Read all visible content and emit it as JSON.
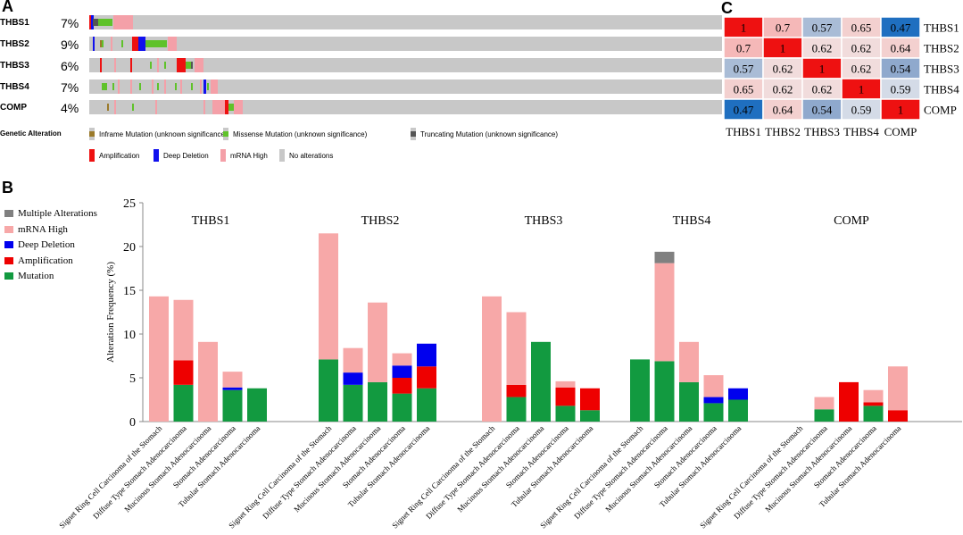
{
  "panels": {
    "a": "A",
    "b": "B",
    "c": "C"
  },
  "oncoprint": {
    "genes": [
      {
        "name": "THBS1",
        "pct": "7%"
      },
      {
        "name": "THBS2",
        "pct": "9%"
      },
      {
        "name": "THBS3",
        "pct": "6%"
      },
      {
        "name": "THBS4",
        "pct": "7%"
      },
      {
        "name": "COMP",
        "pct": "4%"
      }
    ],
    "legend_title": "Genetic Alteration",
    "legend": [
      {
        "label": "Inframe Mutation (unknown significance)",
        "color": "#9b7a2a",
        "shape": "half"
      },
      {
        "label": "Missense Mutation (unknown significance)",
        "color": "#5fc22a",
        "shape": "half"
      },
      {
        "label": "Truncating Mutation (unknown significance)",
        "color": "#555555",
        "shape": "half"
      },
      {
        "label": "Amplification",
        "color": "#ee1111",
        "shape": "full"
      },
      {
        "label": "Deep Deletion",
        "color": "#1111ee",
        "shape": "full"
      },
      {
        "label": "mRNA High",
        "color": "#f4a0a8",
        "shape": "full"
      },
      {
        "label": "No alterations",
        "color": "#c8c8c8",
        "shape": "full"
      }
    ]
  },
  "correlation": {
    "labels": [
      "THBS1",
      "THBS2",
      "THBS3",
      "THBS4",
      "COMP"
    ],
    "values": [
      [
        1,
        0.7,
        0.57,
        0.65,
        0.47
      ],
      [
        0.7,
        1,
        0.62,
        0.62,
        0.64
      ],
      [
        0.57,
        0.62,
        1,
        0.62,
        0.54
      ],
      [
        0.65,
        0.62,
        0.62,
        1,
        0.59
      ],
      [
        0.47,
        0.64,
        0.54,
        0.59,
        1
      ]
    ]
  },
  "chart_data": {
    "type": "bar",
    "stacked": true,
    "ylabel": "Alteration Frequency (%)",
    "ylim": [
      0,
      25
    ],
    "yticks": [
      0,
      5,
      10,
      15,
      20,
      25
    ],
    "legend": [
      {
        "name": "Multiple Alterations",
        "color": "#808080"
      },
      {
        "name": "mRNA High",
        "color": "#f7a8a8"
      },
      {
        "name": "Deep Deletion",
        "color": "#0000ee"
      },
      {
        "name": "Amplification",
        "color": "#ee0000"
      },
      {
        "name": "Mutation",
        "color": "#129a40"
      }
    ],
    "stack_order": [
      "Mutation",
      "Amplification",
      "Deep Deletion",
      "mRNA High",
      "Multiple Alterations"
    ],
    "categories": [
      "Signet Ring Cell Carcinoma of the Stomach",
      "Diffuse Type Stomach Adenocarcinoma",
      "Mucinous Stomach Adenocarcinoma",
      "Stomach Adenocarcinoma",
      "Tubular Stomach Adenocarcinoma"
    ],
    "groups": [
      {
        "gene": "THBS1",
        "bars": [
          {
            "Mutation": 0,
            "Amplification": 0,
            "Deep Deletion": 0,
            "mRNA High": 14.3,
            "Multiple Alterations": 0
          },
          {
            "Mutation": 4.2,
            "Amplification": 2.8,
            "Deep Deletion": 0,
            "mRNA High": 6.9,
            "Multiple Alterations": 0
          },
          {
            "Mutation": 0,
            "Amplification": 0,
            "Deep Deletion": 0,
            "mRNA High": 9.1,
            "Multiple Alterations": 0
          },
          {
            "Mutation": 3.6,
            "Amplification": 0,
            "Deep Deletion": 0.3,
            "mRNA High": 1.8,
            "Multiple Alterations": 0
          },
          {
            "Mutation": 3.8,
            "Amplification": 0,
            "Deep Deletion": 0,
            "mRNA High": 0,
            "Multiple Alterations": 0
          }
        ]
      },
      {
        "gene": "THBS2",
        "bars": [
          {
            "Mutation": 7.1,
            "Amplification": 0,
            "Deep Deletion": 0,
            "mRNA High": 14.4,
            "Multiple Alterations": 0
          },
          {
            "Mutation": 4.2,
            "Amplification": 0,
            "Deep Deletion": 1.4,
            "mRNA High": 2.8,
            "Multiple Alterations": 0
          },
          {
            "Mutation": 4.5,
            "Amplification": 0,
            "Deep Deletion": 0,
            "mRNA High": 9.1,
            "Multiple Alterations": 0
          },
          {
            "Mutation": 3.2,
            "Amplification": 1.8,
            "Deep Deletion": 1.4,
            "mRNA High": 1.4,
            "Multiple Alterations": 0
          },
          {
            "Mutation": 3.8,
            "Amplification": 2.5,
            "Deep Deletion": 2.6,
            "mRNA High": 0,
            "Multiple Alterations": 0
          }
        ]
      },
      {
        "gene": "THBS3",
        "bars": [
          {
            "Mutation": 0,
            "Amplification": 0,
            "Deep Deletion": 0,
            "mRNA High": 14.3,
            "Multiple Alterations": 0
          },
          {
            "Mutation": 2.8,
            "Amplification": 1.4,
            "Deep Deletion": 0,
            "mRNA High": 8.3,
            "Multiple Alterations": 0
          },
          {
            "Mutation": 9.1,
            "Amplification": 0,
            "Deep Deletion": 0,
            "mRNA High": 0,
            "Multiple Alterations": 0
          },
          {
            "Mutation": 1.8,
            "Amplification": 2.1,
            "Deep Deletion": 0,
            "mRNA High": 0.7,
            "Multiple Alterations": 0
          },
          {
            "Mutation": 1.3,
            "Amplification": 2.5,
            "Deep Deletion": 0,
            "mRNA High": 0,
            "Multiple Alterations": 0
          }
        ]
      },
      {
        "gene": "THBS4",
        "bars": [
          {
            "Mutation": 7.1,
            "Amplification": 0,
            "Deep Deletion": 0,
            "mRNA High": 0,
            "Multiple Alterations": 0
          },
          {
            "Mutation": 6.9,
            "Amplification": 0,
            "Deep Deletion": 0,
            "mRNA High": 11.2,
            "Multiple Alterations": 1.3
          },
          {
            "Mutation": 4.5,
            "Amplification": 0,
            "Deep Deletion": 0,
            "mRNA High": 4.6,
            "Multiple Alterations": 0
          },
          {
            "Mutation": 2.1,
            "Amplification": 0,
            "Deep Deletion": 0.7,
            "mRNA High": 2.5,
            "Multiple Alterations": 0
          },
          {
            "Mutation": 2.5,
            "Amplification": 0,
            "Deep Deletion": 1.3,
            "mRNA High": 0,
            "Multiple Alterations": 0
          }
        ]
      },
      {
        "gene": "COMP",
        "bars": [
          {
            "Mutation": 0,
            "Amplification": 0,
            "Deep Deletion": 0,
            "mRNA High": 0,
            "Multiple Alterations": 0
          },
          {
            "Mutation": 1.4,
            "Amplification": 0,
            "Deep Deletion": 0,
            "mRNA High": 1.4,
            "Multiple Alterations": 0
          },
          {
            "Mutation": 0,
            "Amplification": 4.5,
            "Deep Deletion": 0,
            "mRNA High": 0,
            "Multiple Alterations": 0
          },
          {
            "Mutation": 1.8,
            "Amplification": 0.4,
            "Deep Deletion": 0,
            "mRNA High": 1.4,
            "Multiple Alterations": 0
          },
          {
            "Mutation": 0,
            "Amplification": 1.3,
            "Deep Deletion": 0,
            "mRNA High": 5.0,
            "Multiple Alterations": 0
          }
        ]
      }
    ]
  }
}
